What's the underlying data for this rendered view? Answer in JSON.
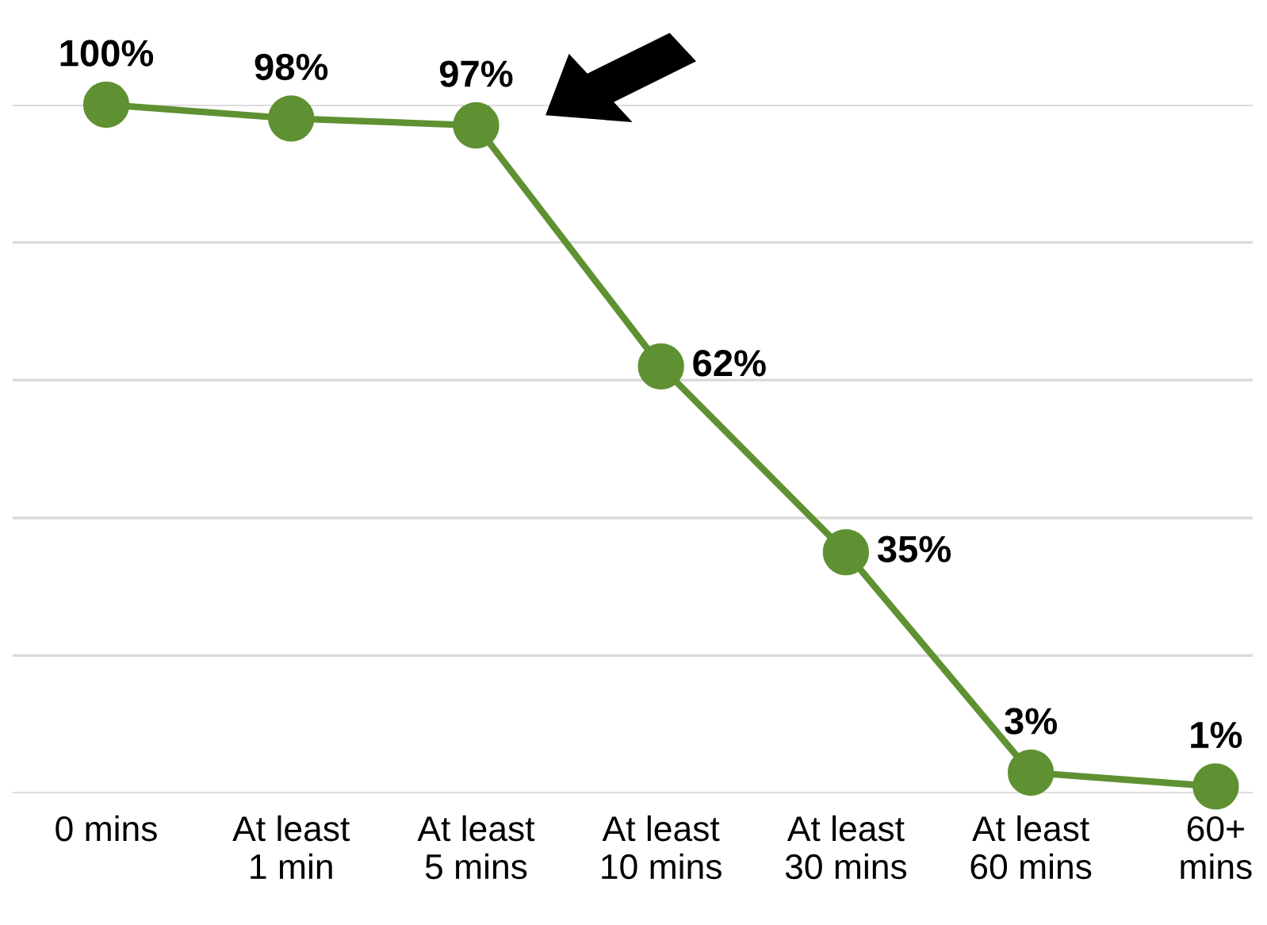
{
  "chart_data": {
    "type": "line",
    "categories": [
      "0 mins",
      "At least\n1 min",
      "At least\n5 mins",
      "At least\n10 mins",
      "At least\n30 mins",
      "At least\n60 mins",
      "60+\nmins"
    ],
    "series": [
      {
        "color": "#5f9133",
        "values": [
          100,
          98,
          97,
          62,
          35,
          3,
          1
        ],
        "value_labels": [
          "100%",
          "98%",
          "97%",
          "62%",
          "35%",
          "3%",
          "1%"
        ]
      }
    ],
    "tick_labels": "x",
    "grid": "y",
    "marker": "circle",
    "line_style": "solid"
  }
}
